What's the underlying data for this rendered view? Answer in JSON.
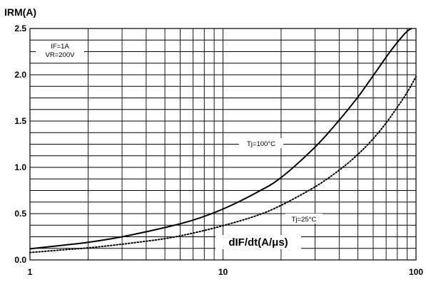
{
  "chart_data": {
    "type": "line",
    "title": "IRM(A)",
    "xlabel": "dIF/dt(A/μs)",
    "ylabel": "IRM(A)",
    "xscale": "log",
    "xlim": [
      1,
      100
    ],
    "ylim": [
      0,
      2.5
    ],
    "x_ticks": [
      "1",
      "10",
      "100"
    ],
    "y_ticks": [
      "0.0",
      "0.5",
      "1.0",
      "1.5",
      "2.0",
      "2.5"
    ],
    "grid": true,
    "conditions": [
      "IF=1A",
      "VR=200V"
    ],
    "series": [
      {
        "name": "Tj=100°C",
        "style": "solid",
        "x": [
          1,
          1.5,
          2,
          3,
          5,
          7,
          10,
          15,
          20,
          30,
          40,
          50,
          60,
          70,
          80,
          90,
          95
        ],
        "y": [
          0.12,
          0.16,
          0.19,
          0.25,
          0.35,
          0.43,
          0.55,
          0.73,
          0.89,
          1.22,
          1.51,
          1.76,
          1.99,
          2.19,
          2.35,
          2.47,
          2.5
        ]
      },
      {
        "name": "Tj=25°C",
        "style": "dotted",
        "x": [
          1,
          1.5,
          2,
          3,
          5,
          7,
          10,
          15,
          20,
          30,
          40,
          50,
          60,
          70,
          80,
          90,
          100
        ],
        "y": [
          0.08,
          0.11,
          0.13,
          0.17,
          0.23,
          0.29,
          0.37,
          0.48,
          0.59,
          0.79,
          0.97,
          1.14,
          1.31,
          1.48,
          1.65,
          1.81,
          1.98
        ]
      }
    ],
    "annotations": [
      "Tj=100°C",
      "Tj=25°C"
    ]
  }
}
